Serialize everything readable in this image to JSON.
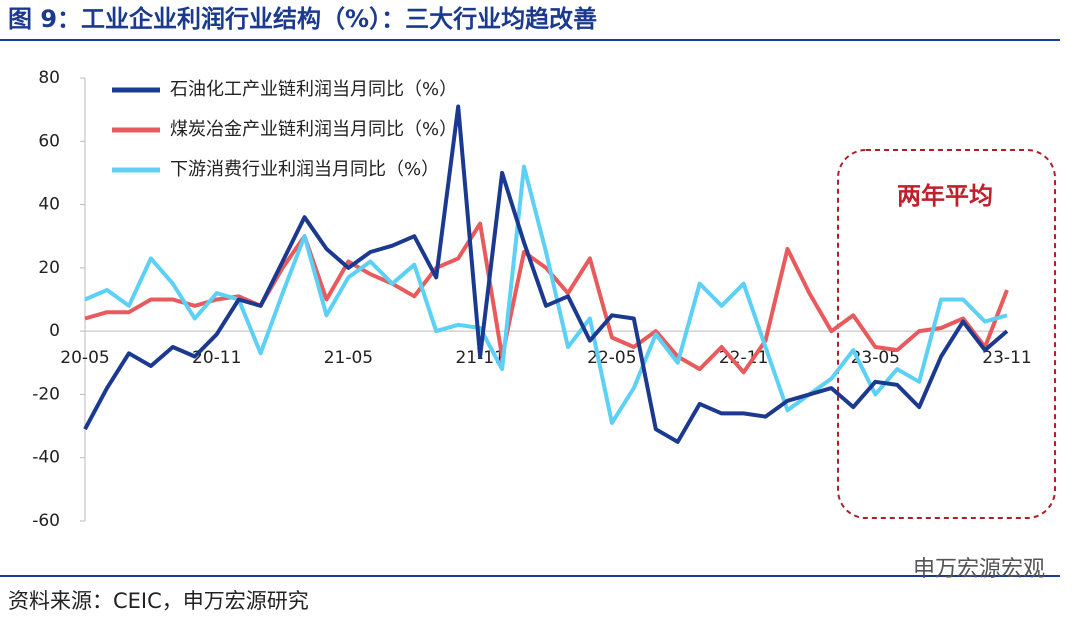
{
  "chart_data": {
    "type": "line",
    "title": "图 9：工业企业利润行业结构（%）：三大行业均趋改善",
    "source": "资料来源：CEIC，申万宏源研究",
    "annotation": "两年平均",
    "watermark": "申万宏源宏观",
    "categories": [
      "20-05",
      null,
      null,
      null,
      null,
      null,
      "20-11",
      null,
      null,
      null,
      null,
      null,
      "21-05",
      null,
      null,
      null,
      null,
      null,
      "21-11",
      null,
      null,
      null,
      null,
      null,
      "22-05",
      null,
      null,
      null,
      null,
      null,
      "22-11",
      null,
      null,
      null,
      null,
      null,
      "23-05",
      null,
      null,
      null,
      null,
      null,
      "23-11"
    ],
    "series": [
      {
        "name": "石油化工产业链利润当月同比（%）",
        "color": "#1b3a8f",
        "values": [
          -31,
          -18,
          -7,
          -11,
          -5,
          -8,
          -1,
          10,
          8,
          22,
          36,
          26,
          20,
          25,
          27,
          30,
          17,
          71,
          -8,
          50,
          28,
          8,
          11,
          -3,
          5,
          4,
          -31,
          -35,
          -23,
          -26,
          -26,
          -27,
          -22,
          -20,
          -18,
          -24,
          -16,
          -17,
          -24,
          -8,
          3,
          -6,
          0
        ]
      },
      {
        "name": "煤炭冶金产业链利润当月同比（%）",
        "color": "#e85a5c",
        "values": [
          4,
          6,
          6,
          10,
          10,
          8,
          10,
          11,
          8,
          20,
          30,
          10,
          22,
          18,
          15,
          11,
          20,
          23,
          34,
          -8,
          25,
          20,
          12,
          23,
          -2,
          -5,
          0,
          -8,
          -12,
          -5,
          -13,
          -3,
          26,
          12,
          0,
          5,
          -5,
          -6,
          0,
          1,
          4,
          -5,
          13
        ]
      },
      {
        "name": "下游消费行业利润当月同比（%）",
        "color": "#5cd0f5",
        "values": [
          10,
          13,
          8,
          23,
          15,
          4,
          12,
          10,
          -7,
          12,
          30,
          5,
          17,
          22,
          15,
          21,
          0,
          2,
          1,
          -12,
          52,
          25,
          -5,
          4,
          -29,
          -18,
          -1,
          -10,
          15,
          8,
          15,
          -5,
          -25,
          -20,
          -15,
          -6,
          -20,
          -12,
          -16,
          10,
          10,
          3,
          5
        ]
      }
    ],
    "ylim": [
      -60,
      80
    ],
    "yticks": [
      -60,
      -40,
      -20,
      0,
      20,
      40,
      60,
      80
    ]
  }
}
